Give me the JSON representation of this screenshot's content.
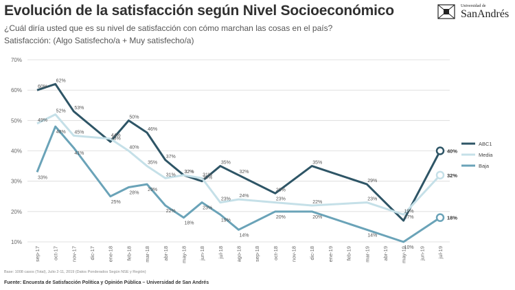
{
  "header": {
    "title": "Evolución de la satisfacción según Nivel Socioeconómico",
    "subtitle": "¿Cuál diría usted que es su nivel de satisfacción con cómo marchan las cosas en el país?",
    "subtitle2": "Satisfacción: (Algo Satisfecho/a + Muy satisfecho/a)",
    "logo_small": "Universidad de",
    "logo_big": "SanAndrés"
  },
  "footer": {
    "note": "Base: 1008 casos (Total), Julio 2-11, 2019 (Datos Ponderados Según NSE y Región)",
    "source": "Fuente: Encuesta de Satisfacción Política y Opinión Pública – Universidad de San Andrés"
  },
  "colors": {
    "abc1": "#2e5566",
    "media": "#c5e0e8",
    "baja": "#6aa3b8",
    "grid": "#d9d9d9",
    "text": "#444444"
  },
  "chart_data": {
    "type": "line",
    "categories": [
      "sep-17",
      "oct-17",
      "nov-17",
      "dic-17",
      "ene-18",
      "feb-18",
      "mar-18",
      "abr-18",
      "may-18",
      "jun-18",
      "jul-18",
      "ago-18",
      "sep-18",
      "oct-18",
      "nov-18",
      "dic-18",
      "ene-19",
      "feb-19",
      "mar-19",
      "abr-19",
      "may-19",
      "jun-19",
      "jul-19"
    ],
    "ylim": [
      10,
      70
    ],
    "yticks": [
      "10%",
      "20%",
      "30%",
      "40%",
      "50%",
      "60%",
      "70%"
    ],
    "grid": true,
    "legend_position": "right",
    "series": [
      {
        "name": "ABC1",
        "color": "#2e5566",
        "points": [
          [
            0,
            60
          ],
          [
            1,
            62
          ],
          [
            2,
            53
          ],
          [
            4,
            43
          ],
          [
            5,
            50
          ],
          [
            6,
            46
          ],
          [
            7,
            37
          ],
          [
            8,
            32
          ],
          [
            9,
            30
          ],
          [
            10,
            35
          ],
          [
            11,
            32
          ],
          [
            13,
            26
          ],
          [
            15,
            35
          ],
          [
            18,
            29
          ],
          [
            20,
            17
          ],
          [
            22,
            40
          ]
        ],
        "labels": [
          "60%",
          "62%",
          "53%",
          "43%",
          "50%",
          "46%",
          "37%",
          "32%",
          "30%",
          "35%",
          "32%",
          "26%",
          "35%",
          "29%",
          "17%",
          "40%"
        ]
      },
      {
        "name": "Media",
        "color": "#c5e0e8",
        "points": [
          [
            0,
            49
          ],
          [
            1,
            52
          ],
          [
            2,
            45
          ],
          [
            4,
            44
          ],
          [
            5,
            40
          ],
          [
            6,
            35
          ],
          [
            7,
            31
          ],
          [
            8,
            32
          ],
          [
            9,
            31
          ],
          [
            10,
            23
          ],
          [
            11,
            24
          ],
          [
            13,
            23
          ],
          [
            15,
            22
          ],
          [
            18,
            23
          ],
          [
            20,
            19
          ],
          [
            22,
            32
          ]
        ],
        "labels": [
          "49%",
          "52%",
          "45%",
          "44%",
          "40%",
          "35%",
          "31%",
          "32%",
          "31%",
          "23%",
          "24%",
          "23%",
          "22%",
          "23%",
          "19%",
          "32%"
        ]
      },
      {
        "name": "Baja",
        "color": "#6aa3b8",
        "points": [
          [
            0,
            33
          ],
          [
            1,
            48
          ],
          [
            2,
            41
          ],
          [
            4,
            25
          ],
          [
            5,
            28
          ],
          [
            6,
            29
          ],
          [
            7,
            22
          ],
          [
            8,
            18
          ],
          [
            9,
            23
          ],
          [
            10,
            19
          ],
          [
            11,
            14
          ],
          [
            13,
            20
          ],
          [
            15,
            20
          ],
          [
            18,
            14
          ],
          [
            20,
            10
          ],
          [
            22,
            18
          ]
        ],
        "labels": [
          "33%",
          "48%",
          "41%",
          "25%",
          "28%",
          "29%",
          "22%",
          "18%",
          "23%",
          "19%",
          "14%",
          "20%",
          "20%",
          "14%",
          "10%",
          "18%"
        ]
      }
    ]
  }
}
